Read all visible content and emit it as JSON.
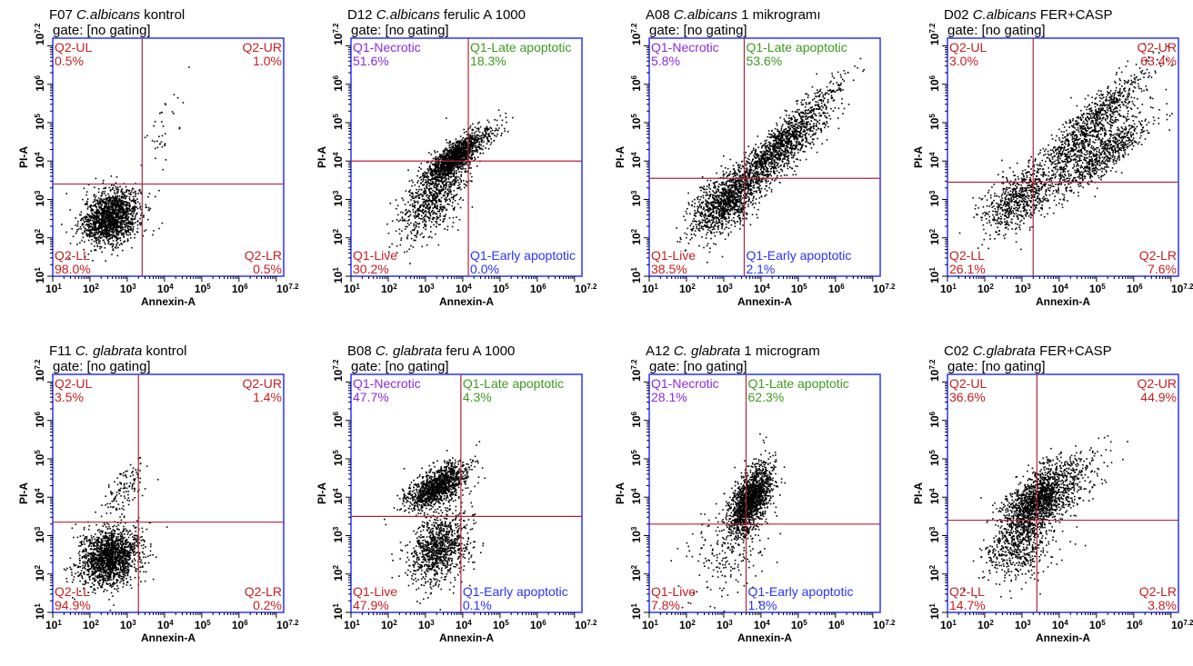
{
  "colors": {
    "frame": "#2a33ff",
    "gate_line": "#b0243a",
    "red_label": "#c81e1e",
    "purple_label": "#8a2be2",
    "green_label": "#3c9a1e",
    "blue_label": "#2a33ff",
    "dots": "#000000"
  },
  "chart_data": [
    {
      "type": "scatter",
      "name": "F07",
      "species": "C.albicans",
      "label": "kontrol",
      "gate": "gate: [no gating]",
      "xlabel": "Annexin-A",
      "ylabel": "PI-A",
      "xlim": [
        1,
        7.2
      ],
      "ylim": [
        1,
        7.2
      ],
      "log_scale": true,
      "gate_x": 3.4,
      "gate_y": 3.4,
      "quadrants": {
        "ul": {
          "name": "Q2-UL",
          "value": "0.5%",
          "name_color": "red",
          "value_color": "red"
        },
        "ur": {
          "name": "Q2-UR",
          "value": "1.0%",
          "name_color": "red",
          "value_color": "red"
        },
        "ll": {
          "name": "Q2-LL",
          "value": "98.0%",
          "name_color": "red",
          "value_color": "red"
        },
        "lr": {
          "name": "Q2-LR",
          "value": "0.5%",
          "name_color": "red",
          "value_color": "red"
        }
      },
      "populations": [
        {
          "x": 2.55,
          "y": 2.55,
          "sx": 0.38,
          "sy": 0.35,
          "rho": 0.25,
          "n": 1600
        },
        {
          "x": 3.9,
          "y": 4.7,
          "sx": 0.3,
          "sy": 0.6,
          "rho": 0.5,
          "n": 40
        }
      ]
    },
    {
      "type": "scatter",
      "name": "D12",
      "species": "C.albicans",
      "label": "ferulic A 1000",
      "gate": "gate: [no gating]",
      "xlabel": "Annexin-A",
      "ylabel": "PI-A",
      "xlim": [
        1,
        7.2
      ],
      "ylim": [
        1,
        7.2
      ],
      "log_scale": true,
      "gate_x": 4.15,
      "gate_y": 4.0,
      "quadrants": {
        "ul": {
          "name": "Q1-Necrotic",
          "value": "51.6%",
          "name_color": "purple",
          "value_color": "purple"
        },
        "ur": {
          "name": "Q1-Late apoptotic",
          "value": "18.3%",
          "name_color": "green",
          "value_color": "green"
        },
        "ll": {
          "name": "Q1-Live",
          "value": "30.2%",
          "name_color": "red",
          "value_color": "red"
        },
        "lr": {
          "name": "Q1-Early apoptotic",
          "value": "0.0%",
          "name_color": "blue",
          "value_color": "blue"
        }
      },
      "populations": [
        {
          "x": 3.7,
          "y": 4.05,
          "sx": 0.35,
          "sy": 0.3,
          "rho": 0.75,
          "n": 1100
        },
        {
          "x": 3.2,
          "y": 3.1,
          "sx": 0.45,
          "sy": 0.55,
          "rho": 0.6,
          "n": 800
        },
        {
          "x": 4.3,
          "y": 4.5,
          "sx": 0.4,
          "sy": 0.3,
          "rho": 0.8,
          "n": 250
        }
      ]
    },
    {
      "type": "scatter",
      "name": "A08",
      "species": "C.albicans",
      "label": "1 mikrogramı",
      "gate": "gate: [no gating]",
      "xlabel": "Annexin-A",
      "ylabel": "PI-A",
      "xlim": [
        1,
        7.2
      ],
      "ylim": [
        1,
        7.2
      ],
      "log_scale": true,
      "gate_x": 3.55,
      "gate_y": 3.55,
      "quadrants": {
        "ul": {
          "name": "Q1-Necrotic",
          "value": "5.8%",
          "name_color": "purple",
          "value_color": "purple"
        },
        "ur": {
          "name": "Q1-Late apoptotic",
          "value": "53.6%",
          "name_color": "green",
          "value_color": "green"
        },
        "ll": {
          "name": "Q1-Live",
          "value": "38.5%",
          "name_color": "red",
          "value_color": "red"
        },
        "lr": {
          "name": "Q1-Early apoptotic",
          "value": "2.1%",
          "name_color": "blue",
          "value_color": "blue"
        }
      },
      "populations": [
        {
          "x": 3.0,
          "y": 2.9,
          "sx": 0.45,
          "sy": 0.45,
          "rho": 0.5,
          "n": 900
        },
        {
          "x": 4.3,
          "y": 4.3,
          "sx": 0.85,
          "sy": 0.85,
          "rho": 0.95,
          "n": 1300
        },
        {
          "x": 4.7,
          "y": 4.2,
          "sx": 0.6,
          "sy": 0.6,
          "rho": 0.9,
          "n": 400
        }
      ]
    },
    {
      "type": "scatter",
      "name": "D02",
      "species": "C.albicans",
      "label": "FER+CASP",
      "gate": "gate: [no gating]",
      "xlabel": "Annexin-A",
      "ylabel": "PI-A",
      "xlim": [
        1,
        7.2
      ],
      "ylim": [
        1,
        7.2
      ],
      "log_scale": true,
      "gate_x": 3.3,
      "gate_y": 3.45,
      "quadrants": {
        "ul": {
          "name": "Q2-UL",
          "value": "3.0%",
          "name_color": "red",
          "value_color": "red"
        },
        "ur": {
          "name": "Q2-UR",
          "value": "63.4%",
          "name_color": "red",
          "value_color": "red"
        },
        "ll": {
          "name": "Q2-LL",
          "value": "26.1%",
          "name_color": "red",
          "value_color": "red"
        },
        "lr": {
          "name": "Q2-LR",
          "value": "7.6%",
          "name_color": "red",
          "value_color": "red"
        }
      },
      "populations": [
        {
          "x": 2.9,
          "y": 3.0,
          "sx": 0.5,
          "sy": 0.45,
          "rho": 0.5,
          "n": 700
        },
        {
          "x": 4.8,
          "y": 4.9,
          "sx": 0.75,
          "sy": 0.75,
          "rho": 0.9,
          "n": 1000
        },
        {
          "x": 5.2,
          "y": 4.2,
          "sx": 0.6,
          "sy": 0.5,
          "rho": 0.85,
          "n": 700
        }
      ]
    },
    {
      "type": "scatter",
      "name": "F11",
      "species": "C. glabrata",
      "label": "kontrol",
      "gate": "gate: [no gating]",
      "xlabel": "Annexin-A",
      "ylabel": "PI-A",
      "xlim": [
        1,
        7.2
      ],
      "ylim": [
        1,
        7.2
      ],
      "log_scale": true,
      "gate_x": 3.3,
      "gate_y": 3.35,
      "quadrants": {
        "ul": {
          "name": "Q2-UL",
          "value": "3.5%",
          "name_color": "red",
          "value_color": "red"
        },
        "ur": {
          "name": "Q2-UR",
          "value": "1.4%",
          "name_color": "red",
          "value_color": "red"
        },
        "ll": {
          "name": "Q2-LL",
          "value": "94.9%",
          "name_color": "red",
          "value_color": "red"
        },
        "lr": {
          "name": "Q2-LR",
          "value": "0.2%",
          "name_color": "red",
          "value_color": "red"
        }
      },
      "populations": [
        {
          "x": 2.5,
          "y": 2.45,
          "sx": 0.4,
          "sy": 0.38,
          "rho": 0.2,
          "n": 1700
        },
        {
          "x": 3.0,
          "y": 4.3,
          "sx": 0.3,
          "sy": 0.3,
          "rho": 0.6,
          "n": 120
        }
      ]
    },
    {
      "type": "scatter",
      "name": "B08",
      "species": "C. glabrata",
      "label": "feru A 1000",
      "gate": "gate: [no gating]",
      "xlabel": "Annexin-A",
      "ylabel": "PI-A",
      "xlim": [
        1,
        7.2
      ],
      "ylim": [
        1,
        7.2
      ],
      "log_scale": true,
      "gate_x": 3.95,
      "gate_y": 3.5,
      "quadrants": {
        "ul": {
          "name": "Q1-Necrotic",
          "value": "47.7%",
          "name_color": "purple",
          "value_color": "purple"
        },
        "ur": {
          "name": "Q1-Late apoptotic",
          "value": "4.3%",
          "name_color": "green",
          "value_color": "green"
        },
        "ll": {
          "name": "Q1-Live",
          "value": "47.9%",
          "name_color": "red",
          "value_color": "red"
        },
        "lr": {
          "name": "Q1-Early apoptotic",
          "value": "0.1%",
          "name_color": "blue",
          "value_color": "blue"
        }
      },
      "populations": [
        {
          "x": 3.3,
          "y": 4.3,
          "sx": 0.4,
          "sy": 0.3,
          "rho": 0.6,
          "n": 1200
        },
        {
          "x": 3.35,
          "y": 2.7,
          "sx": 0.4,
          "sy": 0.45,
          "rho": 0.3,
          "n": 1000
        }
      ]
    },
    {
      "type": "scatter",
      "name": "A12",
      "species": "C. glabrata",
      "label": "1 microgram",
      "gate": "gate: [no gating]",
      "xlabel": "Annexin-A",
      "ylabel": "PI-A",
      "xlim": [
        1,
        7.2
      ],
      "ylim": [
        1,
        7.2
      ],
      "log_scale": true,
      "gate_x": 3.6,
      "gate_y": 3.3,
      "quadrants": {
        "ul": {
          "name": "Q1-Necrotic",
          "value": "28.1%",
          "name_color": "purple",
          "value_color": "purple"
        },
        "ur": {
          "name": "Q1-Late apoptotic",
          "value": "62.3%",
          "name_color": "green",
          "value_color": "green"
        },
        "ll": {
          "name": "Q1-Live",
          "value": "7.8%",
          "name_color": "red",
          "value_color": "red"
        },
        "lr": {
          "name": "Q1-Early apoptotic",
          "value": "1.8%",
          "name_color": "blue",
          "value_color": "blue"
        }
      },
      "populations": [
        {
          "x": 3.7,
          "y": 3.95,
          "sx": 0.28,
          "sy": 0.45,
          "rho": 0.55,
          "n": 1600
        },
        {
          "x": 3.1,
          "y": 2.6,
          "sx": 0.6,
          "sy": 0.6,
          "rho": 0.3,
          "n": 200
        }
      ]
    },
    {
      "type": "scatter",
      "name": "C02",
      "species": "C.glabrata",
      "label": "FER+CASP",
      "gate": "gate: [no gating]",
      "xlabel": "Annexin-A",
      "ylabel": "PI-A",
      "xlim": [
        1,
        7.2
      ],
      "ylim": [
        1,
        7.2
      ],
      "log_scale": true,
      "gate_x": 3.4,
      "gate_y": 3.4,
      "quadrants": {
        "ul": {
          "name": "Q2-UL",
          "value": "36.6%",
          "name_color": "red",
          "value_color": "red"
        },
        "ur": {
          "name": "Q2-UR",
          "value": "44.9%",
          "name_color": "red",
          "value_color": "red"
        },
        "ll": {
          "name": "Q2-LL",
          "value": "14.7%",
          "name_color": "red",
          "value_color": "red"
        },
        "lr": {
          "name": "Q2-LR",
          "value": "3.8%",
          "name_color": "red",
          "value_color": "red"
        }
      },
      "populations": [
        {
          "x": 3.35,
          "y": 3.9,
          "sx": 0.45,
          "sy": 0.5,
          "rho": 0.6,
          "n": 1400
        },
        {
          "x": 2.9,
          "y": 2.7,
          "sx": 0.5,
          "sy": 0.5,
          "rho": 0.3,
          "n": 500
        },
        {
          "x": 4.2,
          "y": 4.3,
          "sx": 0.55,
          "sy": 0.5,
          "rho": 0.7,
          "n": 300
        }
      ]
    }
  ]
}
